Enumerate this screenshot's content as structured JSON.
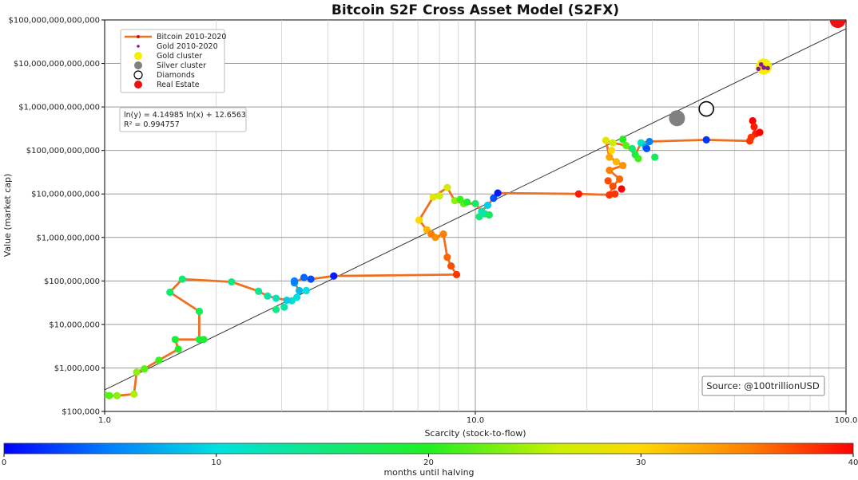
{
  "chart_data": {
    "type": "scatter",
    "title": "Bitcoin S2F Cross Asset Model (S2FX)",
    "xlabel": "Scarcity (stock-to-flow)",
    "ylabel": "Value (market cap)",
    "xscale": "log",
    "yscale": "log",
    "xlim": [
      1,
      100
    ],
    "ylim": [
      100000,
      100000000000000
    ],
    "x_ticks": [
      1,
      10,
      100
    ],
    "x_tick_labels": [
      "1.0",
      "10.0",
      "100.0"
    ],
    "y_ticks": [
      100000,
      1000000,
      10000000,
      100000000,
      1000000000,
      10000000000,
      100000000000,
      1000000000000,
      10000000000000,
      100000000000000
    ],
    "y_tick_labels": [
      "$100,000",
      "$1,000,000",
      "$10,000,000",
      "$100,000,000",
      "$1,000,000,000",
      "$10,000,000,000",
      "$100,000,000,000",
      "$1,000,000,000,000",
      "$10,000,000,000,000",
      "$100,000,000,000,000"
    ],
    "grid": true,
    "legend_position": "top-left",
    "legend": [
      {
        "label": "Bitcoin 2010-2020",
        "marker": "line",
        "color": "#f07020"
      },
      {
        "label": "Gold 2010-2020",
        "marker": "small-dot",
        "color": "#8b1a8b"
      },
      {
        "label": "Gold cluster",
        "marker": "dot",
        "color": "#f5f000"
      },
      {
        "label": "Silver cluster",
        "marker": "dot",
        "color": "#808080"
      },
      {
        "label": "Diamonds",
        "marker": "hollow-circle",
        "color": "#000000"
      },
      {
        "label": "Real Estate",
        "marker": "dot",
        "color": "#ee1111"
      }
    ],
    "regression": {
      "equation": "ln(y) = 4.14985 ln(x) + 12.6563",
      "r_squared": "R² = 0.994757",
      "slope": 4.14985,
      "intercept": 12.6563
    },
    "source_label": "Source: @100trillionUSD",
    "colorbar": {
      "label": "months until halving",
      "range": [
        0,
        40
      ],
      "ticks": [
        0,
        10,
        20,
        30,
        40
      ],
      "tick_labels": [
        "0",
        "10",
        "20",
        "30",
        "40"
      ]
    },
    "bitcoin_path": [
      {
        "x": 1.0,
        "y": 240000,
        "m": 22
      },
      {
        "x": 1.03,
        "y": 230000,
        "m": 22
      },
      {
        "x": 1.08,
        "y": 230000,
        "m": 24
      },
      {
        "x": 1.2,
        "y": 250000,
        "m": 25
      },
      {
        "x": 1.22,
        "y": 800000,
        "m": 24
      },
      {
        "x": 1.28,
        "y": 950000,
        "m": 22
      },
      {
        "x": 1.4,
        "y": 1500000,
        "m": 21
      },
      {
        "x": 1.58,
        "y": 2700000,
        "m": 20
      },
      {
        "x": 1.55,
        "y": 4500000,
        "m": 19
      },
      {
        "x": 1.8,
        "y": 4500000,
        "m": 18
      },
      {
        "x": 1.8,
        "y": 20000000,
        "m": 17
      },
      {
        "x": 1.5,
        "y": 55000000,
        "m": 16
      },
      {
        "x": 1.62,
        "y": 110000000,
        "m": 16
      },
      {
        "x": 2.2,
        "y": 95000000,
        "m": 15
      },
      {
        "x": 2.6,
        "y": 58000000,
        "m": 14
      },
      {
        "x": 2.75,
        "y": 45000000,
        "m": 13
      },
      {
        "x": 2.9,
        "y": 40000000,
        "m": 12
      },
      {
        "x": 3.2,
        "y": 35000000,
        "m": 11
      },
      {
        "x": 3.3,
        "y": 42000000,
        "m": 10
      },
      {
        "x": 3.35,
        "y": 60000000,
        "m": 8
      },
      {
        "x": 3.25,
        "y": 90000000,
        "m": 6
      },
      {
        "x": 3.45,
        "y": 120000000,
        "m": 4
      },
      {
        "x": 3.6,
        "y": 110000000,
        "m": 3
      },
      {
        "x": 4.15,
        "y": 130000000,
        "m": 1
      },
      {
        "x": 8.9,
        "y": 140000000,
        "m": 38
      },
      {
        "x": 8.6,
        "y": 220000000,
        "m": 37
      },
      {
        "x": 8.4,
        "y": 350000000,
        "m": 36
      },
      {
        "x": 8.2,
        "y": 1200000000,
        "m": 35
      },
      {
        "x": 7.8,
        "y": 1000000000,
        "m": 34
      },
      {
        "x": 7.4,
        "y": 1500000000,
        "m": 32
      },
      {
        "x": 7.05,
        "y": 2500000000,
        "m": 30
      },
      {
        "x": 7.7,
        "y": 8500000000,
        "m": 28
      },
      {
        "x": 8.4,
        "y": 14000000000,
        "m": 27
      },
      {
        "x": 8.8,
        "y": 7000000000,
        "m": 24
      },
      {
        "x": 9.3,
        "y": 6000000000,
        "m": 22
      },
      {
        "x": 10.0,
        "y": 6000000000,
        "m": 16
      },
      {
        "x": 10.4,
        "y": 4000000000,
        "m": 12
      },
      {
        "x": 10.8,
        "y": 5500000000,
        "m": 9
      },
      {
        "x": 11.2,
        "y": 8000000000,
        "m": 3
      },
      {
        "x": 11.5,
        "y": 10500000000,
        "m": 1
      },
      {
        "x": 19.0,
        "y": 10000000000,
        "m": 39
      },
      {
        "x": 23.0,
        "y": 9500000000,
        "m": 38
      },
      {
        "x": 23.5,
        "y": 15000000000,
        "m": 37
      },
      {
        "x": 24.5,
        "y": 22000000000,
        "m": 36
      },
      {
        "x": 23.0,
        "y": 35000000000,
        "m": 35
      },
      {
        "x": 25.0,
        "y": 45000000000,
        "m": 34
      },
      {
        "x": 23.0,
        "y": 70000000000,
        "m": 33
      },
      {
        "x": 22.5,
        "y": 170000000000,
        "m": 28
      },
      {
        "x": 23.5,
        "y": 150000000000,
        "m": 26
      },
      {
        "x": 25.5,
        "y": 130000000000,
        "m": 22
      },
      {
        "x": 27.0,
        "y": 80000000000,
        "m": 18
      },
      {
        "x": 28.0,
        "y": 150000000000,
        "m": 12
      },
      {
        "x": 29.5,
        "y": 160000000000,
        "m": 5
      },
      {
        "x": 42.0,
        "y": 175000000000,
        "m": 2
      },
      {
        "x": 55.0,
        "y": 165000000000,
        "m": 38
      },
      {
        "x": 57.0,
        "y": 240000000000,
        "m": 39
      },
      {
        "x": 56.0,
        "y": 480000000000,
        "m": 40
      }
    ],
    "bitcoin_extra_points": [
      {
        "x": 1.85,
        "y": 4500000,
        "m": 19
      },
      {
        "x": 2.9,
        "y": 22000000,
        "m": 15
      },
      {
        "x": 3.05,
        "y": 25000000,
        "m": 13
      },
      {
        "x": 3.1,
        "y": 36000000,
        "m": 9
      },
      {
        "x": 3.5,
        "y": 60000000,
        "m": 10
      },
      {
        "x": 3.25,
        "y": 100000000,
        "m": 5
      },
      {
        "x": 7.6,
        "y": 1200000000,
        "m": 35
      },
      {
        "x": 8.0,
        "y": 9000000000,
        "m": 26
      },
      {
        "x": 9.1,
        "y": 7500000000,
        "m": 21
      },
      {
        "x": 10.25,
        "y": 3000000000,
        "m": 15
      },
      {
        "x": 10.6,
        "y": 3500000000,
        "m": 13
      },
      {
        "x": 10.9,
        "y": 3300000000,
        "m": 17
      },
      {
        "x": 9.5,
        "y": 6500000000,
        "m": 19
      },
      {
        "x": 23.8,
        "y": 10000000000,
        "m": 38
      },
      {
        "x": 24.8,
        "y": 13000000000,
        "m": 40
      },
      {
        "x": 22.8,
        "y": 20000000000,
        "m": 37
      },
      {
        "x": 24.0,
        "y": 55000000000,
        "m": 32
      },
      {
        "x": 23.3,
        "y": 100000000000,
        "m": 30
      },
      {
        "x": 25.0,
        "y": 180000000000,
        "m": 20
      },
      {
        "x": 26.5,
        "y": 110000000000,
        "m": 16
      },
      {
        "x": 27.5,
        "y": 65000000000,
        "m": 21
      },
      {
        "x": 28.8,
        "y": 120000000000,
        "m": 7
      },
      {
        "x": 30.5,
        "y": 70000000000,
        "m": 17
      },
      {
        "x": 29.0,
        "y": 110000000000,
        "m": 3
      },
      {
        "x": 56.5,
        "y": 350000000000,
        "m": 39
      },
      {
        "x": 58.5,
        "y": 260000000000,
        "m": 40
      },
      {
        "x": 55.5,
        "y": 200000000000,
        "m": 38
      }
    ],
    "gold_points": [
      {
        "x": 58.0,
        "y": 7500000000000
      },
      {
        "x": 60.0,
        "y": 8000000000000
      },
      {
        "x": 61.5,
        "y": 7800000000000
      },
      {
        "x": 59.0,
        "y": 9500000000000
      }
    ],
    "clusters": [
      {
        "name": "Gold cluster",
        "x": 60.0,
        "y": 8500000000000,
        "color": "#f5f000"
      },
      {
        "name": "Silver cluster",
        "x": 35.0,
        "y": 550000000000,
        "color": "#808080"
      },
      {
        "name": "Diamonds",
        "x": 42.0,
        "y": 900000000000,
        "color": "#000000"
      },
      {
        "name": "Real Estate",
        "x": 95.0,
        "y": 100000000000000,
        "color": "#ee1111"
      }
    ]
  }
}
